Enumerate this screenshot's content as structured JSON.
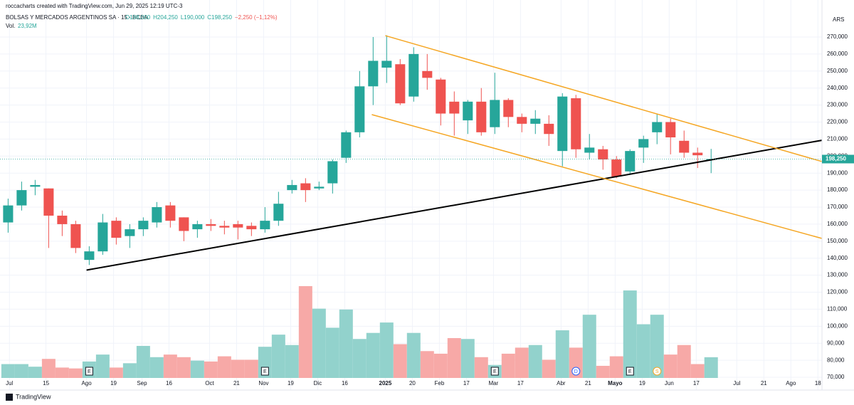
{
  "chart_data": {
    "type": "candlestick",
    "header": {
      "credit": "roccacharts created with TradingView.com, Jun 29, 2025 12:19 UTC-3",
      "symbol": "BOLSAS Y MERCADOS ARGENTINOS SA · 15 · BCBA",
      "ohlc": [
        "O198,000",
        "H204,250",
        "L190,000",
        "C198,250",
        "−2,250 (−1,12%)"
      ],
      "vol_label": "Vol.",
      "vol_value": "23,92M"
    },
    "currency": "ARS",
    "footer": "TradingView",
    "up_color": "#26a69a",
    "down_color": "#ef5350",
    "volume_up_color": "#92d2cc",
    "volume_down_color": "#f7a9a7",
    "x": [
      0,
      1,
      2,
      3,
      4,
      5,
      6,
      7,
      8,
      9,
      10,
      11,
      12,
      13,
      14,
      15,
      16,
      17,
      18,
      19,
      20,
      21,
      22,
      23,
      24,
      25,
      26,
      27,
      28,
      29,
      30,
      31,
      32,
      33,
      34,
      35,
      36,
      37,
      38,
      39,
      40,
      41,
      42,
      43,
      44,
      45,
      46,
      47,
      48,
      49,
      50,
      51,
      52
    ],
    "open": [
      161000,
      171000,
      182000,
      181000,
      165000,
      160000,
      139000,
      144000,
      162000,
      153000,
      157000,
      161000,
      171000,
      164000,
      157000,
      160000,
      159000,
      160000,
      159000,
      157000,
      162000,
      180000,
      184000,
      181000,
      184000,
      199000,
      214000,
      241000,
      252000,
      254000,
      235000,
      250000,
      245000,
      232000,
      221000,
      232000,
      217000,
      233000,
      223000,
      219000,
      219000,
      203000,
      234000,
      202000,
      204000,
      198000,
      191000,
      205000,
      214000,
      220000,
      209000,
      202000,
      198000
    ],
    "high": [
      175000,
      185000,
      186000,
      181000,
      168000,
      162000,
      147000,
      166000,
      164000,
      160000,
      164000,
      173000,
      173000,
      164000,
      162000,
      163000,
      162000,
      162000,
      161000,
      170000,
      179000,
      186000,
      187000,
      185000,
      198000,
      215000,
      250000,
      270000,
      271000,
      257000,
      264000,
      260000,
      246000,
      238000,
      233000,
      240000,
      249000,
      234000,
      225000,
      227000,
      224000,
      237000,
      236000,
      213000,
      206000,
      200000,
      204000,
      212000,
      225000,
      222000,
      215000,
      205000,
      204250
    ],
    "low": [
      155000,
      168000,
      177000,
      146000,
      153000,
      143000,
      136000,
      142000,
      148000,
      146000,
      153000,
      158000,
      158000,
      150000,
      152000,
      156000,
      154000,
      151000,
      153000,
      155000,
      159000,
      178000,
      173000,
      180000,
      178000,
      196000,
      211000,
      230000,
      243000,
      230000,
      232000,
      239000,
      218000,
      212000,
      213000,
      212000,
      213000,
      217000,
      214000,
      213000,
      206000,
      194000,
      199000,
      198000,
      192000,
      187000,
      189000,
      196000,
      207000,
      201000,
      199000,
      193000,
      190000
    ],
    "close": [
      171000,
      180000,
      183000,
      165000,
      160000,
      146000,
      144000,
      161000,
      152000,
      157000,
      162000,
      170000,
      162000,
      156000,
      160000,
      159000,
      158000,
      158000,
      157000,
      162000,
      172000,
      183000,
      180000,
      182000,
      197000,
      214000,
      241000,
      256000,
      256000,
      231000,
      260000,
      246000,
      225000,
      225000,
      232000,
      214000,
      233000,
      223000,
      219000,
      222000,
      213000,
      235000,
      204000,
      205000,
      198000,
      188000,
      203000,
      210000,
      220000,
      211000,
      202000,
      200500,
      198250
    ],
    "volume": [
      16,
      16,
      13,
      22,
      12,
      11,
      19,
      27,
      12,
      17,
      37,
      24,
      27,
      24,
      20,
      19,
      25,
      21,
      21,
      36,
      50,
      38,
      106,
      80,
      58,
      79,
      45,
      52,
      64,
      39,
      52,
      31,
      28,
      46,
      45,
      24,
      15,
      28,
      35,
      38,
      21,
      55,
      35,
      73,
      14,
      25,
      101,
      62,
      73,
      27,
      38,
      16,
      23.92
    ],
    "events": [
      {
        "x": 6,
        "label": "E"
      },
      {
        "x": 19,
        "label": "E"
      },
      {
        "x": 36,
        "label": "E"
      },
      {
        "x": 46,
        "label": "E"
      },
      {
        "x": 42,
        "label": "D"
      },
      {
        "x": 48,
        "label": "S"
      }
    ],
    "trendlines": [
      {
        "color": "#000000",
        "x": [
          5.8,
          60.2
        ],
        "y": [
          133000,
          209300
        ]
      },
      {
        "color": "#f5a623",
        "x": [
          27.9,
          60.2
        ],
        "y": [
          270800,
          196800
        ]
      },
      {
        "color": "#f5a623",
        "x": [
          26.9,
          60.2
        ],
        "y": [
          224400,
          151600
        ]
      }
    ],
    "last_price": {
      "value": 198250,
      "label": "198,250"
    },
    "xlim": [
      -0.6,
      60.2
    ],
    "ylim": [
      69600,
      291750
    ],
    "xticks": [
      {
        "value": 0.1,
        "label": "Jul"
      },
      {
        "value": 2.8,
        "label": "15"
      },
      {
        "value": 5.8,
        "label": "Ago"
      },
      {
        "value": 7.8,
        "label": "19"
      },
      {
        "value": 9.9,
        "label": "Sep"
      },
      {
        "value": 11.9,
        "label": "16"
      },
      {
        "value": 14.9,
        "label": "Oct"
      },
      {
        "value": 16.9,
        "label": "21"
      },
      {
        "value": 18.9,
        "label": "Nov"
      },
      {
        "value": 20.9,
        "label": "19"
      },
      {
        "value": 22.9,
        "label": "Dic"
      },
      {
        "value": 24.9,
        "label": "16"
      },
      {
        "value": 27.9,
        "label": "2025"
      },
      {
        "value": 29.9,
        "label": "20"
      },
      {
        "value": 31.9,
        "label": "Feb"
      },
      {
        "value": 33.9,
        "label": "17"
      },
      {
        "value": 35.9,
        "label": "Mar"
      },
      {
        "value": 37.9,
        "label": "17"
      },
      {
        "value": 40.9,
        "label": "Abr"
      },
      {
        "value": 42.9,
        "label": "21"
      },
      {
        "value": 44.9,
        "label": "Mayo"
      },
      {
        "value": 46.9,
        "label": "19"
      },
      {
        "value": 48.9,
        "label": "Jun"
      },
      {
        "value": 50.9,
        "label": "17"
      },
      {
        "value": 53.9,
        "label": "Jul"
      },
      {
        "value": 55.9,
        "label": "21"
      },
      {
        "value": 57.9,
        "label": "Ago"
      },
      {
        "value": 59.9,
        "label": "18"
      }
    ],
    "yticks": [
      {
        "value": 70000,
        "label": "70,000"
      },
      {
        "value": 80000,
        "label": "80,000"
      },
      {
        "value": 90000,
        "label": "90,000"
      },
      {
        "value": 100000,
        "label": "100,000"
      },
      {
        "value": 110000,
        "label": "110,000"
      },
      {
        "value": 120000,
        "label": "120,000"
      },
      {
        "value": 130000,
        "label": "130,000"
      },
      {
        "value": 140000,
        "label": "140,000"
      },
      {
        "value": 150000,
        "label": "150,000"
      },
      {
        "value": 160000,
        "label": "160,000"
      },
      {
        "value": 170000,
        "label": "170,000"
      },
      {
        "value": 180000,
        "label": "180,000"
      },
      {
        "value": 190000,
        "label": "190,000"
      },
      {
        "value": 200000,
        "label": "200,000"
      },
      {
        "value": 210000,
        "label": "210,000"
      },
      {
        "value": 220000,
        "label": "220,000"
      },
      {
        "value": 230000,
        "label": "230,000"
      },
      {
        "value": 240000,
        "label": "240,000"
      },
      {
        "value": 250000,
        "label": "250,000"
      },
      {
        "value": 260000,
        "label": "260,000"
      },
      {
        "value": 270000,
        "label": "270,000"
      }
    ],
    "grid": true
  }
}
